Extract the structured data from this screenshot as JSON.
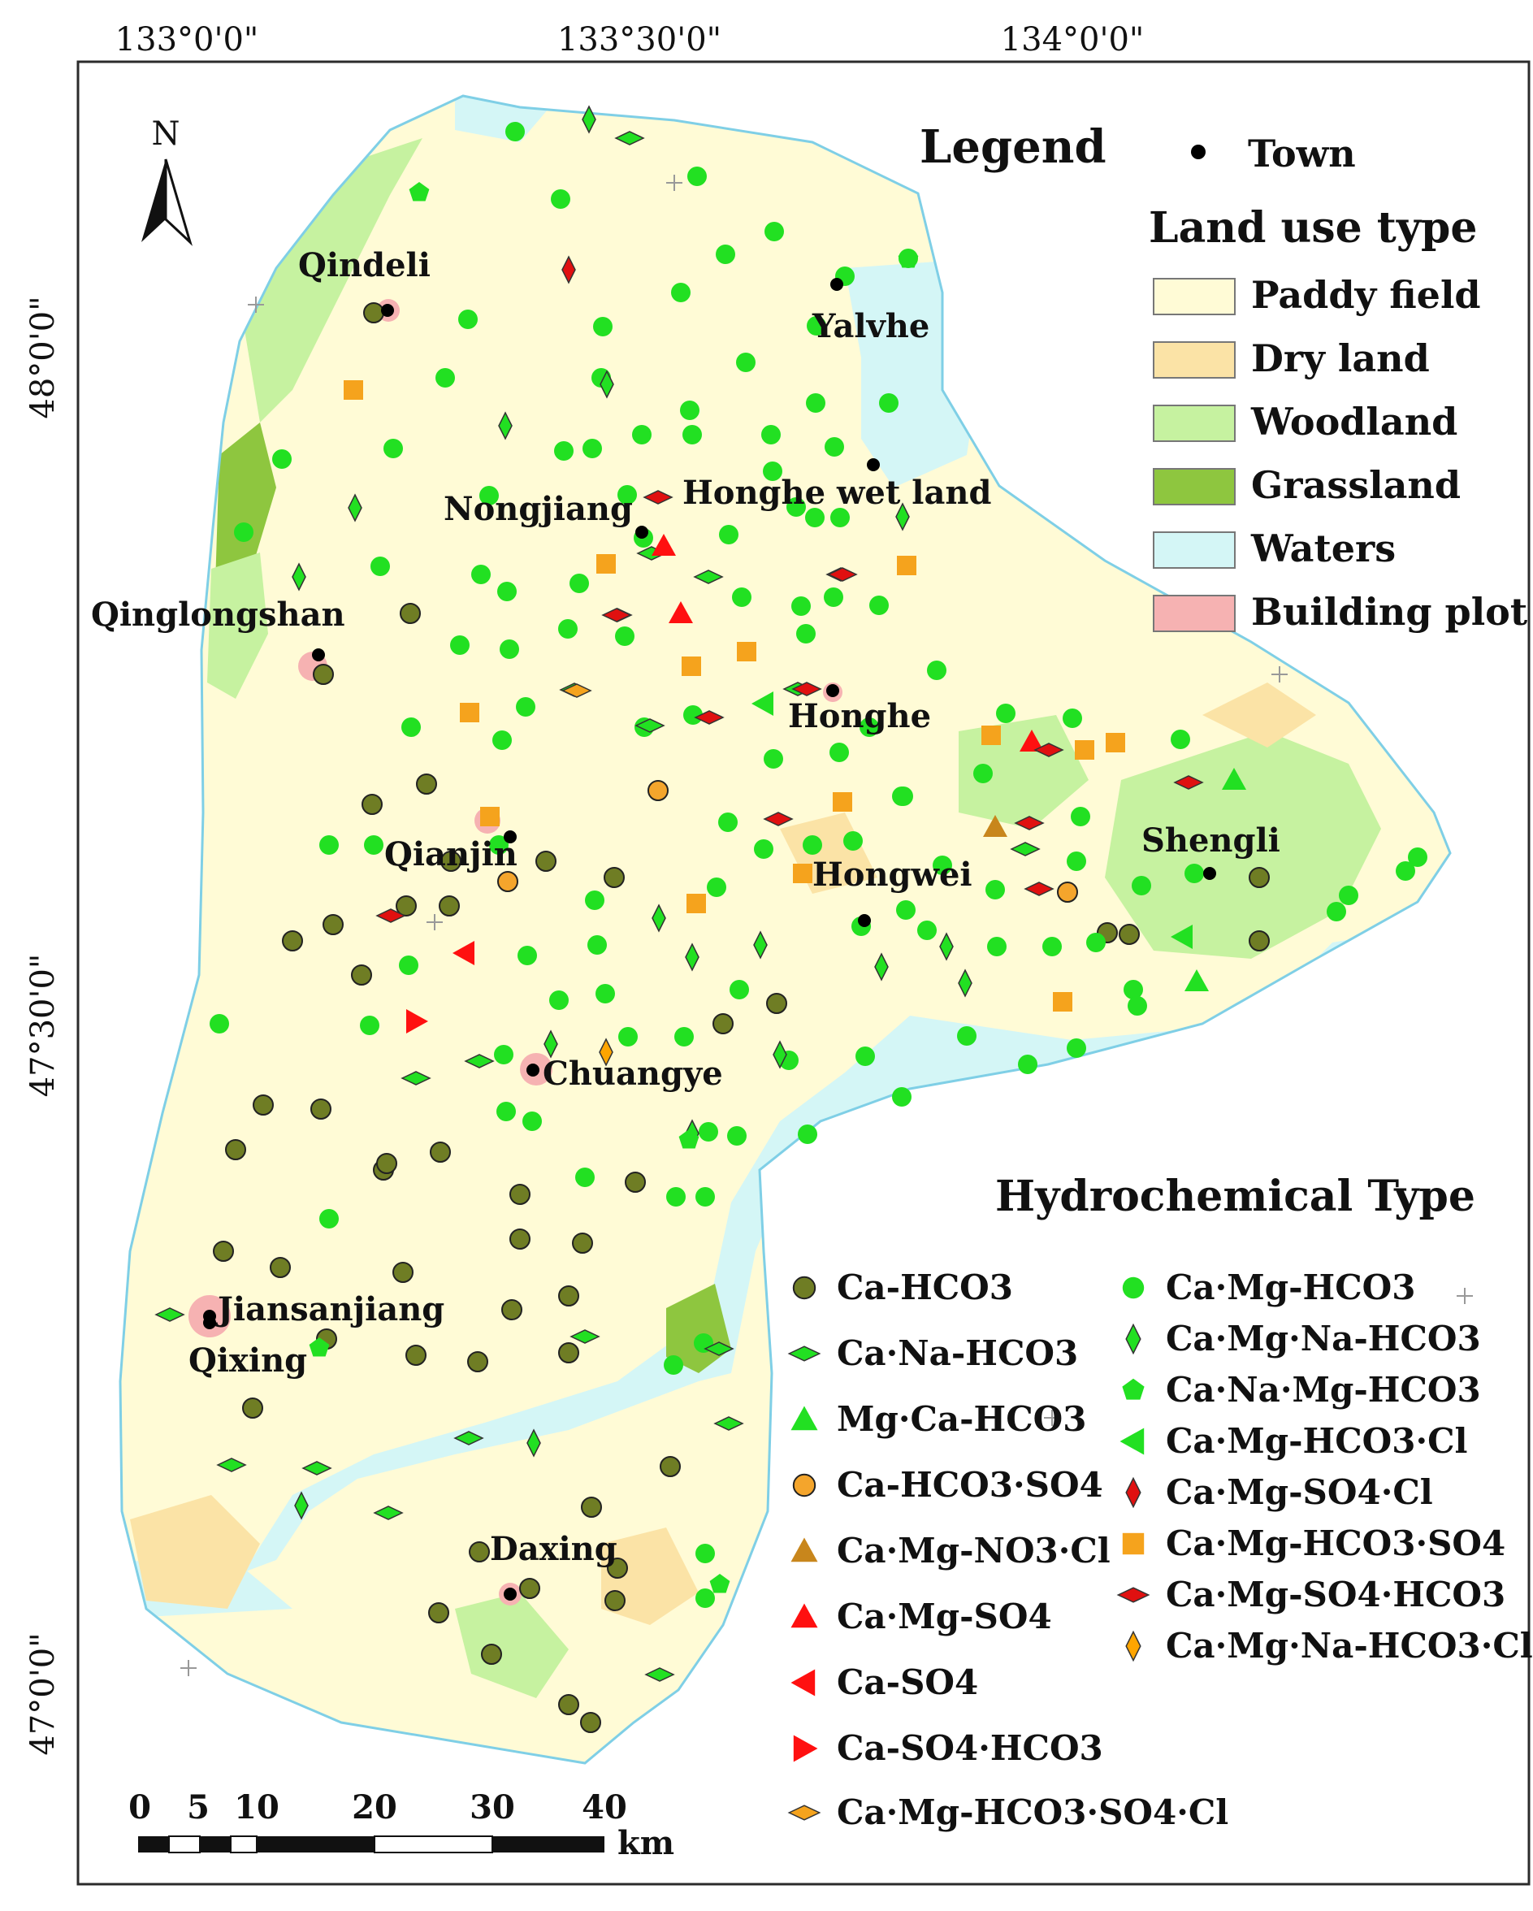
{
  "coords": {
    "top": [
      "133°0'0\"",
      "133°30'0\"",
      "134°0'0\""
    ],
    "left": [
      "48°0'0\"",
      "47°30'0\"",
      "47°0'0\""
    ]
  },
  "north": "N",
  "towns": [
    {
      "id": "qindeli",
      "name": "Qindeli"
    },
    {
      "id": "yalvhe",
      "name": "Yalvhe"
    },
    {
      "id": "nongjiang",
      "name": "Nongjiang"
    },
    {
      "id": "honghe-wet",
      "name": "Honghe wet land"
    },
    {
      "id": "qinglongshan",
      "name": "Qinglongshan"
    },
    {
      "id": "honghe",
      "name": "Honghe"
    },
    {
      "id": "qianjin",
      "name": "Qianjin"
    },
    {
      "id": "hongwei",
      "name": "Hongwei"
    },
    {
      "id": "shengli",
      "name": "Shengli"
    },
    {
      "id": "chuangye",
      "name": "Chuangye"
    },
    {
      "id": "jiansanjiang",
      "name": "Jiansanjiang"
    },
    {
      "id": "qixing",
      "name": "Qixing"
    },
    {
      "id": "daxing",
      "name": "Daxing"
    }
  ],
  "legend": {
    "title": "Legend",
    "town": "Town",
    "land_use_title": "Land use type",
    "land_use": [
      {
        "label": "Paddy field",
        "color": "#fffbd6"
      },
      {
        "label": "Dry land",
        "color": "#fbe3a6"
      },
      {
        "label": "Woodland",
        "color": "#c6f2a0"
      },
      {
        "label": "Grassland",
        "color": "#8ec63f"
      },
      {
        "label": "Waters",
        "color": "#d4f6f6"
      },
      {
        "label": "Building plot",
        "color": "#f6b2b2"
      }
    ]
  },
  "hydro": {
    "title": "Hydrochemical Type",
    "types": [
      {
        "label": "Ca-HCO3",
        "color": "#6f7d24",
        "icon": "circle"
      },
      {
        "label": "Ca·Mg-HCO3",
        "color": "#22e022",
        "icon": "circle"
      },
      {
        "label": "Ca·Na-HCO3",
        "color": "#22e022",
        "icon": "diamond-wide"
      },
      {
        "label": "Ca·Mg·Na-HCO3",
        "color": "#22e022",
        "icon": "diamond-tall"
      },
      {
        "label": "Mg·Ca-HCO3",
        "color": "#22e022",
        "icon": "triangle-up"
      },
      {
        "label": "Ca·Na·Mg-HCO3",
        "color": "#22e022",
        "icon": "pentagon"
      },
      {
        "label": "Ca-HCO3·SO4",
        "color": "#f4a52c",
        "icon": "circle"
      },
      {
        "label": "Ca·Mg-HCO3·Cl",
        "color": "#22e022",
        "icon": "triangle-left"
      },
      {
        "label": "Ca·Mg-NO3·Cl",
        "color": "#c8861c",
        "icon": "triangle-up"
      },
      {
        "label": "Ca·Mg-SO4·Cl",
        "color": "#e01010",
        "icon": "diamond-tall"
      },
      {
        "label": "Ca·Mg-SO4",
        "color": "#ff1010",
        "icon": "triangle-up"
      },
      {
        "label": "Ca·Mg-HCO3·SO4",
        "color": "#f5a31d",
        "icon": "square"
      },
      {
        "label": "Ca-SO4",
        "color": "#ff1010",
        "icon": "triangle-left"
      },
      {
        "label": "Ca·Mg-SO4·HCO3",
        "color": "#e01010",
        "icon": "diamond-wide"
      },
      {
        "label": "Ca-SO4·HCO3",
        "color": "#ff1010",
        "icon": "triangle-right"
      },
      {
        "label": "Ca·Mg·Na-HCO3·Cl",
        "color": "#ffa500",
        "icon": "diamond-tall"
      },
      {
        "label": "Ca·Mg-HCO3·SO4·Cl",
        "color": "#f5a31d",
        "icon": "diamond-wide"
      }
    ]
  },
  "scale": {
    "ticks": [
      "0",
      "5",
      "10",
      "20",
      "30",
      "40"
    ],
    "unit": "km"
  }
}
